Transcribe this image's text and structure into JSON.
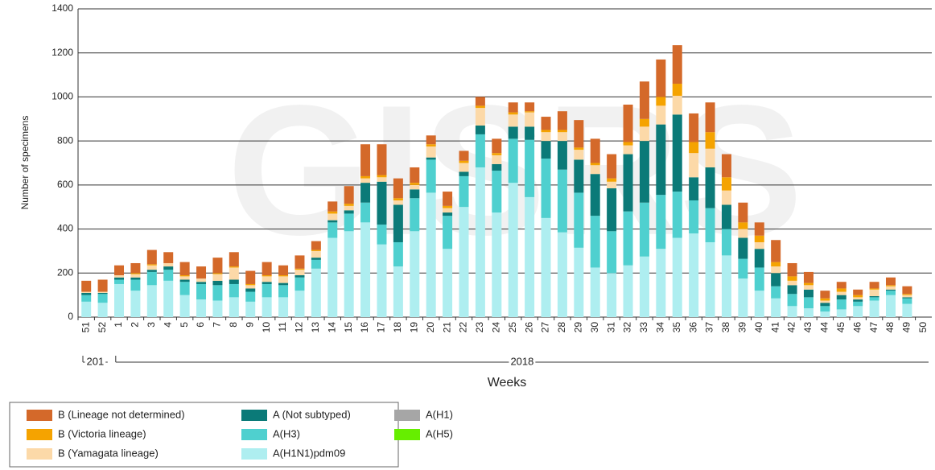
{
  "chart_data": {
    "type": "stacked_bar",
    "watermark": "GISRS",
    "y_label": "Number of specimens",
    "x_label": "Weeks",
    "x_groups": [
      "201",
      "2018"
    ],
    "categories": [
      "51",
      "52",
      "1",
      "2",
      "3",
      "4",
      "5",
      "6",
      "7",
      "8",
      "9",
      "10",
      "11",
      "12",
      "13",
      "14",
      "15",
      "16",
      "17",
      "18",
      "19",
      "20",
      "21",
      "22",
      "23",
      "24",
      "25",
      "26",
      "27",
      "28",
      "29",
      "30",
      "31",
      "32",
      "33",
      "34",
      "35",
      "36",
      "37",
      "38",
      "39",
      "40",
      "41",
      "42",
      "43",
      "44",
      "45",
      "46",
      "47",
      "48",
      "49",
      "50"
    ],
    "ylim": [
      0,
      1400
    ],
    "yticks": [
      0,
      200,
      400,
      600,
      800,
      1000,
      1200,
      1400
    ],
    "grid": true,
    "series": [
      {
        "name": "A(H5)",
        "color": "#66ee00",
        "values": [
          0,
          0,
          0,
          0,
          0,
          0,
          0,
          0,
          0,
          0,
          0,
          0,
          0,
          0,
          0,
          0,
          0,
          0,
          0,
          0,
          0,
          0,
          0,
          0,
          0,
          0,
          0,
          0,
          0,
          0,
          0,
          0,
          0,
          0,
          0,
          0,
          0,
          0,
          0,
          0,
          0,
          0,
          0,
          0,
          0,
          0,
          0,
          0,
          0,
          0,
          0,
          0
        ]
      },
      {
        "name": "A(H1)",
        "color": "#a6a6a6",
        "values": [
          0,
          0,
          0,
          0,
          0,
          0,
          0,
          0,
          0,
          0,
          0,
          0,
          0,
          0,
          0,
          0,
          0,
          0,
          0,
          0,
          0,
          0,
          0,
          0,
          0,
          0,
          0,
          0,
          0,
          0,
          0,
          0,
          0,
          0,
          0,
          0,
          0,
          0,
          0,
          0,
          0,
          0,
          0,
          0,
          0,
          0,
          0,
          0,
          0,
          0,
          0,
          0
        ]
      },
      {
        "name": "A(H1N1)pdm09",
        "color": "#aeeef0",
        "values": [
          70,
          65,
          150,
          120,
          145,
          165,
          100,
          80,
          75,
          90,
          70,
          90,
          90,
          120,
          220,
          360,
          390,
          430,
          330,
          230,
          390,
          565,
          310,
          500,
          680,
          475,
          610,
          545,
          450,
          385,
          315,
          225,
          200,
          235,
          275,
          310,
          360,
          380,
          340,
          280,
          175,
          120,
          85,
          50,
          40,
          25,
          35,
          50,
          75,
          100,
          60,
          0
        ]
      },
      {
        "name": "A(H3)",
        "color": "#4fd0cf",
        "values": [
          30,
          40,
          20,
          50,
          60,
          50,
          60,
          70,
          70,
          60,
          45,
          60,
          55,
          60,
          40,
          70,
          80,
          90,
          90,
          110,
          150,
          150,
          150,
          140,
          150,
          190,
          200,
          260,
          270,
          285,
          250,
          235,
          190,
          245,
          245,
          245,
          210,
          150,
          155,
          120,
          90,
          105,
          55,
          55,
          50,
          25,
          45,
          20,
          15,
          20,
          25,
          0
        ]
      },
      {
        "name": "A (Not subtyped)",
        "color": "#0b7a78",
        "values": [
          10,
          5,
          10,
          10,
          10,
          15,
          10,
          10,
          20,
          20,
          15,
          10,
          10,
          10,
          10,
          10,
          15,
          90,
          195,
          170,
          40,
          10,
          15,
          20,
          40,
          30,
          55,
          60,
          80,
          130,
          150,
          190,
          195,
          260,
          280,
          320,
          350,
          105,
          185,
          110,
          95,
          85,
          60,
          40,
          35,
          15,
          20,
          10,
          5,
          5,
          5,
          0
        ]
      },
      {
        "name": "B (Yamagata lineage)",
        "color": "#fcd9a8",
        "values": [
          5,
          5,
          10,
          15,
          20,
          15,
          15,
          15,
          30,
          55,
          15,
          25,
          30,
          25,
          30,
          30,
          20,
          20,
          20,
          20,
          20,
          50,
          20,
          40,
          80,
          40,
          55,
          65,
          40,
          40,
          45,
          40,
          30,
          40,
          65,
          85,
          85,
          110,
          85,
          65,
          40,
          30,
          30,
          20,
          20,
          10,
          15,
          10,
          30,
          15,
          10,
          0
        ]
      },
      {
        "name": "B (Victoria lineage)",
        "color": "#f5a300",
        "values": [
          0,
          0,
          0,
          5,
          5,
          0,
          5,
          0,
          5,
          5,
          5,
          5,
          5,
          5,
          5,
          10,
          10,
          10,
          10,
          10,
          10,
          10,
          10,
          10,
          10,
          10,
          10,
          5,
          10,
          10,
          10,
          10,
          15,
          15,
          35,
          40,
          55,
          50,
          75,
          60,
          30,
          30,
          20,
          20,
          10,
          10,
          15,
          10,
          5,
          5,
          5,
          0
        ]
      },
      {
        "name": "B (Lineage not determined)",
        "color": "#d4692a",
        "values": [
          50,
          55,
          45,
          45,
          65,
          50,
          60,
          55,
          70,
          65,
          60,
          60,
          45,
          60,
          40,
          45,
          80,
          145,
          140,
          90,
          70,
          40,
          65,
          45,
          40,
          65,
          45,
          40,
          60,
          85,
          125,
          110,
          110,
          170,
          170,
          170,
          175,
          130,
          135,
          105,
          90,
          60,
          100,
          60,
          50,
          35,
          30,
          25,
          30,
          35,
          35,
          0
        ]
      }
    ]
  }
}
